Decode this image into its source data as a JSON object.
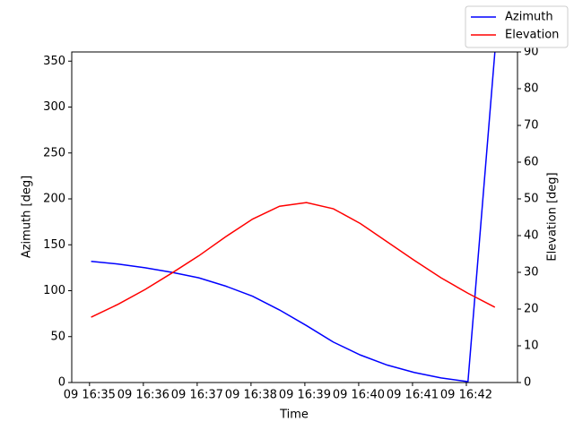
{
  "chart_data": {
    "type": "line",
    "x_label": "Time",
    "y_label": "Azimuth [deg]",
    "y2_label": "Elevation [deg]",
    "x": [
      35.03,
      35.53,
      36.03,
      36.53,
      37.03,
      37.53,
      38.03,
      38.53,
      39.03,
      39.53,
      40.03,
      40.53,
      41.03,
      41.53,
      42.03,
      42.53
    ],
    "series": [
      {
        "name": "Azimuth",
        "color": "#0000ff",
        "axis": "y",
        "values": [
          132,
          129,
          125,
          120,
          114,
          105,
          94,
          79,
          62,
          44,
          30,
          19,
          11,
          5,
          1,
          360
        ]
      },
      {
        "name": "Elevation",
        "color": "#ff0000",
        "axis": "y2",
        "values": [
          17.8,
          21.3,
          25.3,
          29.8,
          34.5,
          39.7,
          44.5,
          48.0,
          49.0,
          47.3,
          43.3,
          38.3,
          33.3,
          28.5,
          24.3,
          20.5
        ]
      }
    ],
    "xlim": [
      34.67,
      42.95
    ],
    "xticks": [
      {
        "value": 35,
        "label": "09 16:35"
      },
      {
        "value": 36,
        "label": "09 16:36"
      },
      {
        "value": 37,
        "label": "09 16:37"
      },
      {
        "value": 38,
        "label": "09 16:38"
      },
      {
        "value": 39,
        "label": "09 16:39"
      },
      {
        "value": 40,
        "label": "09 16:40"
      },
      {
        "value": 41,
        "label": "09 16:41"
      },
      {
        "value": 42,
        "label": "09 16:42"
      }
    ],
    "ylim": [
      0,
      360
    ],
    "yticks": [
      0,
      50,
      100,
      150,
      200,
      250,
      300,
      350
    ],
    "y2lim": [
      0,
      90
    ],
    "y2ticks": [
      0,
      10,
      20,
      30,
      40,
      50,
      60,
      70,
      80,
      90
    ],
    "legend": "upper right"
  }
}
